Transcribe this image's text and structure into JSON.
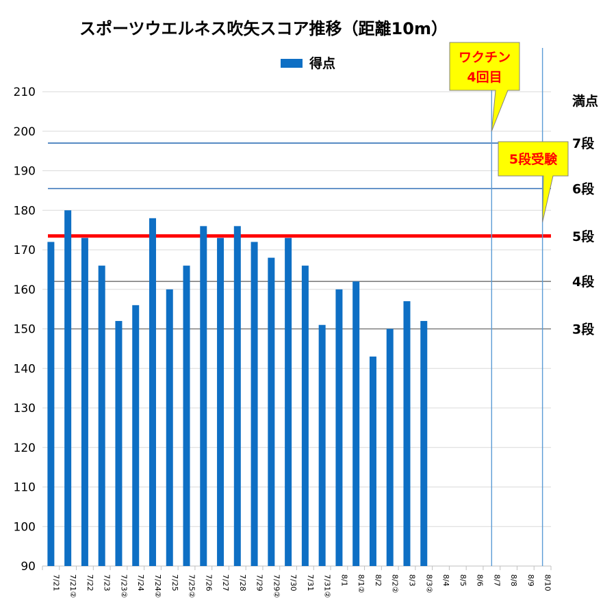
{
  "chart_data": {
    "type": "bar",
    "title": "スポーツウエルネス吹矢スコア推移（距離10m）",
    "legend": {
      "label": "得点",
      "color": "#0e6fc4",
      "position": "top"
    },
    "categories": [
      "7/21",
      "7/21②",
      "7/22",
      "7/23",
      "7/23②",
      "7/24",
      "7/24②",
      "7/25",
      "7/25②",
      "7/26",
      "7/27",
      "7/28",
      "7/29",
      "7/29②",
      "7/30",
      "7/31",
      "7/31②",
      "8/1",
      "8/1②",
      "8/2",
      "8/2②",
      "8/3",
      "8/3②",
      "8/4",
      "8/5",
      "8/6",
      "8/7",
      "8/8",
      "8/9",
      "8/10"
    ],
    "series": [
      {
        "name": "得点",
        "color": "#0e6fc4",
        "values": [
          172,
          180,
          173,
          166,
          152,
          156,
          178,
          160,
          166,
          176,
          173,
          176,
          172,
          168,
          173,
          166,
          151,
          160,
          162,
          143,
          150,
          157,
          152,
          null,
          null,
          null,
          null,
          null,
          null,
          null
        ]
      }
    ],
    "ylim": [
      90,
      210
    ],
    "yticks": [
      90,
      100,
      110,
      120,
      130,
      140,
      150,
      160,
      170,
      180,
      190,
      200,
      210
    ],
    "grid": true,
    "thresholds": [
      {
        "label": "満点",
        "value": 210,
        "color": "#d9d9d9",
        "bold": false,
        "text_color": "#000000"
      },
      {
        "label": "7段",
        "value": 197,
        "color": "#2f6fb6",
        "bold": false,
        "text_color": "#000000"
      },
      {
        "label": "6段",
        "value": 185.5,
        "color": "#2f6fb6",
        "bold": false,
        "text_color": "#000000"
      },
      {
        "label": "5段",
        "value": 173.5,
        "color": "#ff0000",
        "bold": true,
        "text_color": "#ff0000"
      },
      {
        "label": "4段",
        "value": 162,
        "color": "#7f7f7f",
        "bold": false,
        "text_color": "#000000"
      },
      {
        "label": "3段",
        "value": 150,
        "color": "#7f7f7f",
        "bold": false,
        "text_color": "#000000"
      }
    ],
    "markers": [
      {
        "x": "8/7",
        "line1": "ワクチン",
        "line2": "4回目",
        "pointer_value": 200
      },
      {
        "x": "8/10",
        "line1": "5段受験",
        "line2": "",
        "pointer_value": 177
      }
    ]
  }
}
